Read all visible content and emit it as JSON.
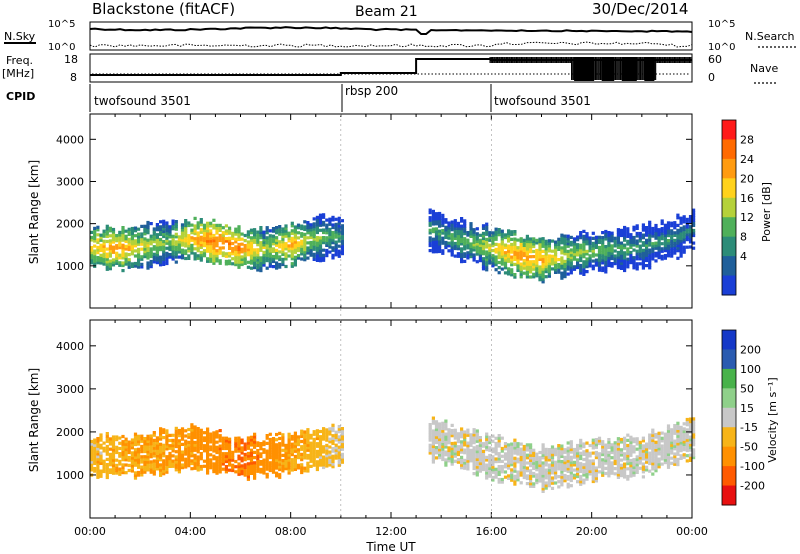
{
  "header": {
    "station": "Blackstone (fitACF)",
    "beam": "Beam 21",
    "date": "30/Dec/2014"
  },
  "status_panels": {
    "nsky_label": "N.Sky",
    "nsky_ticks": [
      "10^5",
      "10^0"
    ],
    "nsearch_label": "N.Search",
    "nsearch_ticks": [
      "10^5",
      "10^0"
    ],
    "freq_label": "Freq.",
    "freq_unit": "[MHz]",
    "freq_ticks": [
      "18",
      "8"
    ],
    "nave_label": "Nave",
    "nave_ticks": [
      "60",
      "0"
    ],
    "cpid_label": "CPID",
    "cpid_segments": [
      {
        "label": "twofsound 3501",
        "start_hour": 0
      },
      {
        "label": "rbsp 200",
        "start_hour": 10
      },
      {
        "label": "twofsound 3501",
        "start_hour": 16
      }
    ]
  },
  "x_axis": {
    "label": "Time UT",
    "ticks": [
      "00:00",
      "04:00",
      "08:00",
      "12:00",
      "16:00",
      "20:00",
      "00:00"
    ]
  },
  "power_colorbar": {
    "label": "Power [dB]",
    "ticks": [
      "28",
      "24",
      "20",
      "16",
      "12",
      "8",
      "4"
    ],
    "colors": [
      "#ff1a1a",
      "#ff6a00",
      "#ff9b10",
      "#ffd21c",
      "#b5d13a",
      "#4fb05a",
      "#2c8c78",
      "#1f5f9a",
      "#1a3fd6"
    ]
  },
  "velocity_colorbar": {
    "label": "Velocity [m s⁻¹]",
    "ticks": [
      "200",
      "100",
      "50",
      "15",
      "-15",
      "-50",
      "-100",
      "-200"
    ],
    "colors": [
      "#1438c8",
      "#2a5bb0",
      "#48b24a",
      "#8fd08a",
      "#c8c8c8",
      "#f7b418",
      "#ff9000",
      "#ff5a00",
      "#e81010"
    ]
  },
  "chart_data": [
    {
      "type": "heatmap",
      "title": "",
      "xlabel": "Time UT",
      "ylabel": "Slant Range [km]",
      "xlim": [
        0,
        24
      ],
      "ylim": [
        0,
        4600
      ],
      "y_ticks": [
        1000,
        2000,
        3000,
        4000
      ],
      "colorbar": "Power [dB]",
      "features": [
        {
          "name": "main_band",
          "hours": [
            0,
            1,
            2,
            3,
            4,
            5,
            6,
            7,
            8,
            9,
            10
          ],
          "range_km": [
            1500,
            1450,
            1500,
            1600,
            1700,
            1600,
            1450,
            1450,
            1550,
            1700,
            1750
          ],
          "power_db": [
            22,
            26,
            20,
            16,
            24,
            28,
            26,
            18,
            24,
            16,
            12
          ]
        },
        {
          "name": "late_band",
          "hours": [
            13.5,
            15,
            16,
            17,
            18,
            19,
            20,
            21,
            22,
            23,
            24
          ],
          "range_km": [
            1900,
            1600,
            1450,
            1300,
            1200,
            1300,
            1400,
            1450,
            1500,
            1650,
            1900
          ],
          "power_db": [
            12,
            16,
            20,
            26,
            24,
            18,
            16,
            14,
            12,
            12,
            10
          ]
        }
      ]
    },
    {
      "type": "heatmap",
      "title": "",
      "xlabel": "Time UT",
      "ylabel": "Slant Range [km]",
      "xlim": [
        0,
        24
      ],
      "ylim": [
        0,
        4600
      ],
      "y_ticks": [
        1000,
        2000,
        3000,
        4000
      ],
      "colorbar": "Velocity [m s⁻¹]",
      "features": [
        {
          "name": "main_band",
          "hours": [
            0,
            2,
            4,
            6,
            8,
            10
          ],
          "range_km": [
            1500,
            1500,
            1700,
            1450,
            1550,
            1750
          ],
          "velocity_ms": [
            -30,
            -50,
            -60,
            -100,
            -50,
            -15
          ]
        },
        {
          "name": "late_band",
          "hours": [
            13.5,
            16,
            18,
            20,
            22,
            24
          ],
          "range_km": [
            1900,
            1450,
            1200,
            1400,
            1500,
            1900
          ],
          "velocity_ms": [
            0,
            0,
            0,
            0,
            0,
            0
          ]
        }
      ]
    }
  ]
}
